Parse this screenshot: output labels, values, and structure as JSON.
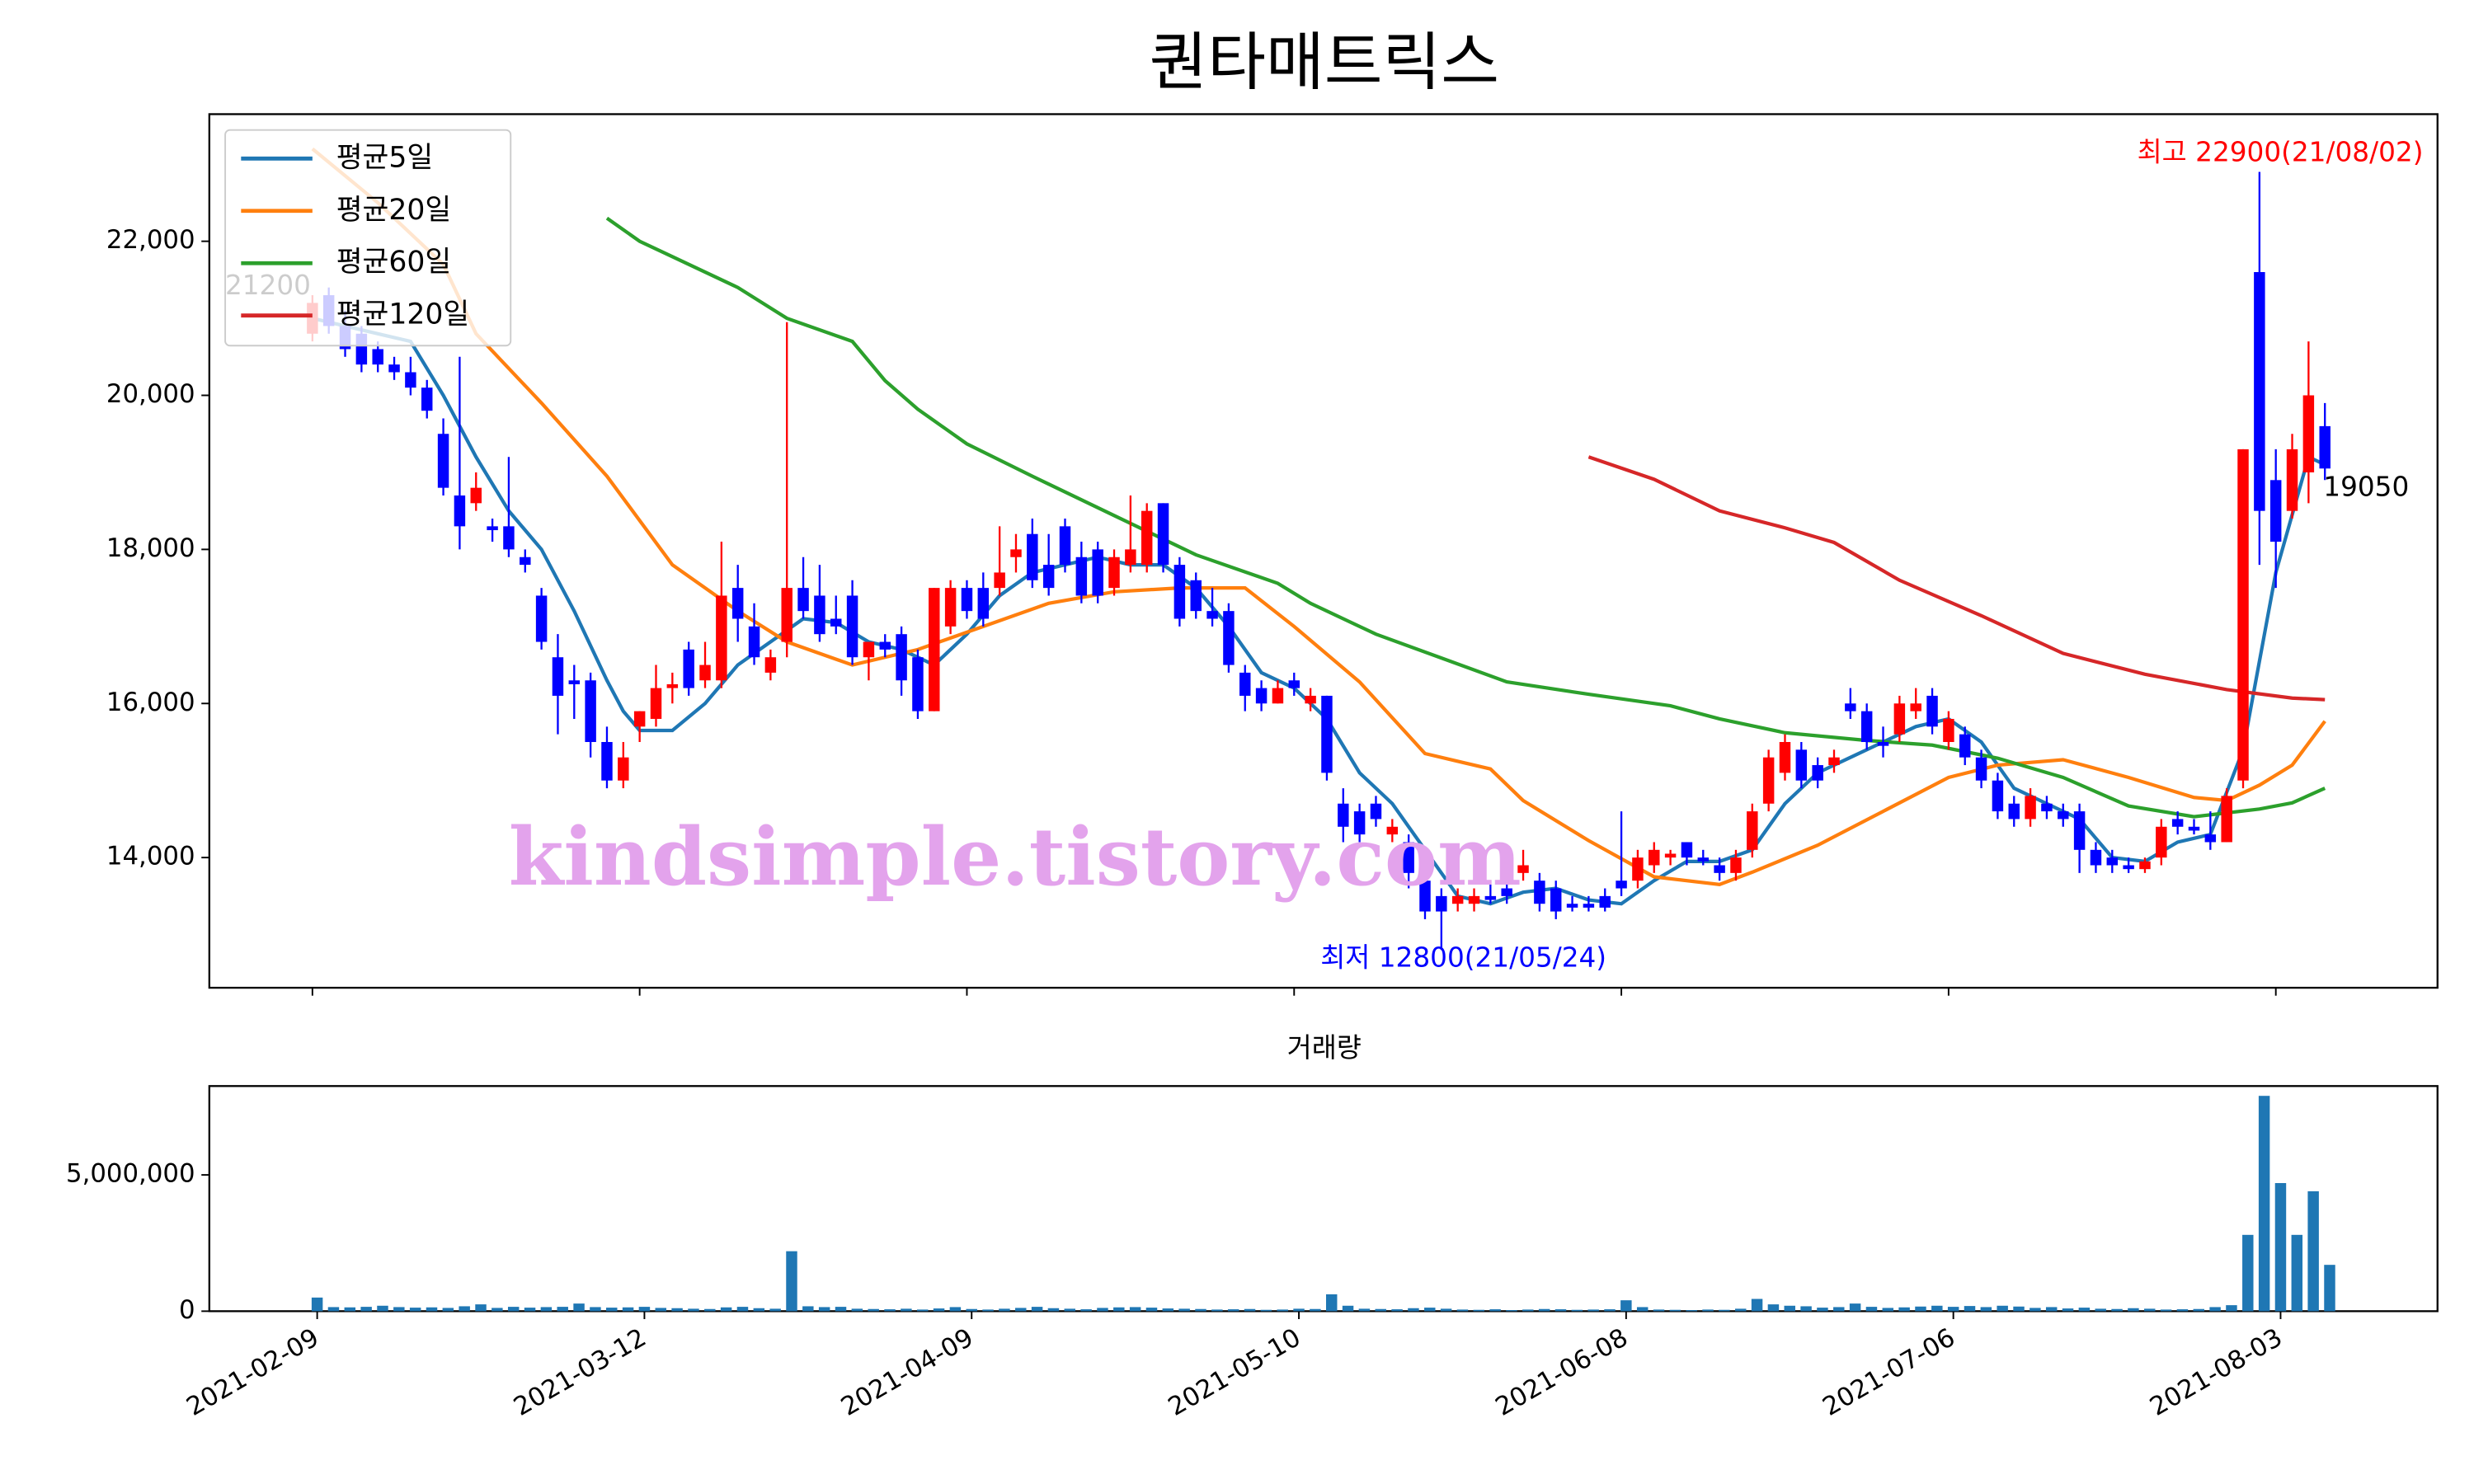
{
  "chart_data": {
    "type": "candlestick",
    "title": "퀀타매트릭스",
    "watermark": "kindsimple.tistory.com",
    "categories": [
      "2021-02-09",
      null,
      null,
      null,
      null,
      null,
      null,
      null,
      null,
      null,
      null,
      null,
      null,
      null,
      null,
      null,
      null,
      null,
      null,
      null,
      "2021-03-12",
      null,
      null,
      null,
      null,
      null,
      null,
      null,
      null,
      null,
      null,
      null,
      null,
      null,
      null,
      null,
      null,
      null,
      null,
      null,
      "2021-04-09",
      null,
      null,
      null,
      null,
      null,
      null,
      null,
      null,
      null,
      null,
      null,
      null,
      null,
      null,
      null,
      null,
      null,
      null,
      null,
      "2021-05-10",
      null,
      null,
      null,
      null,
      null,
      null,
      null,
      null,
      null,
      null,
      null,
      null,
      null,
      null,
      null,
      null,
      null,
      null,
      null,
      "2021-06-08",
      null,
      null,
      null,
      null,
      null,
      null,
      null,
      null,
      null,
      null,
      null,
      null,
      null,
      null,
      null,
      null,
      null,
      null,
      null,
      "2021-07-06",
      null,
      null,
      null,
      null,
      null,
      null,
      null,
      null,
      null,
      null,
      null,
      null,
      null,
      null,
      null,
      null,
      null,
      null,
      null,
      "2021-08-03",
      null,
      null,
      null
    ],
    "open": [
      20800,
      21300,
      20900,
      20800,
      20600,
      20400,
      20300,
      20100,
      19500,
      18700,
      18600,
      18300,
      18300,
      17900,
      17400,
      16600,
      16300,
      16300,
      15500,
      15000,
      15700,
      15800,
      16200,
      16700,
      16300,
      16300,
      17500,
      17000,
      16400,
      16800,
      17500,
      17400,
      17100,
      17400,
      16600,
      16800,
      16900,
      16600,
      15900,
      17000,
      17500,
      17500,
      17500,
      17900,
      18200,
      17800,
      18300,
      17900,
      18000,
      17500,
      17800,
      17800,
      18600,
      17800,
      17600,
      17200,
      17200,
      16400,
      16200,
      16000,
      16300,
      16000,
      16100,
      14700,
      14600,
      14700,
      14300,
      14200,
      13700,
      13500,
      13400,
      13400,
      13500,
      13600,
      13800,
      13700,
      13600,
      13400,
      13400,
      13500,
      13700,
      13700,
      13900,
      14000,
      14200,
      14000,
      13900,
      13800,
      14100,
      14700,
      15100,
      15400,
      15200,
      15200,
      16000,
      15900,
      15500,
      15600,
      15900,
      16100,
      15500,
      15600,
      15300,
      15000,
      14700,
      14500,
      14700,
      14600,
      14600,
      14100,
      14000,
      13900,
      13850,
      14000,
      14500,
      14400,
      14300,
      14200,
      15000,
      21600,
      18900,
      18500,
      19000,
      19600
    ],
    "high": [
      21300,
      21400,
      21100,
      20900,
      20700,
      20500,
      20500,
      20200,
      19700,
      20500,
      19000,
      18400,
      19200,
      18000,
      17500,
      16900,
      16500,
      16400,
      15700,
      15500,
      15900,
      16500,
      16400,
      16800,
      16800,
      18100,
      17800,
      17300,
      16700,
      20950,
      17900,
      17800,
      17400,
      17600,
      16800,
      16900,
      17000,
      16700,
      17500,
      17600,
      17600,
      17700,
      18300,
      18200,
      18400,
      18200,
      18400,
      18100,
      18100,
      18000,
      18700,
      18600,
      18600,
      17900,
      17700,
      17500,
      17300,
      16500,
      16300,
      16300,
      16400,
      16200,
      16100,
      14900,
      14700,
      14800,
      14500,
      14300,
      13800,
      13600,
      13600,
      13600,
      13700,
      13700,
      14100,
      13800,
      13700,
      13500,
      13500,
      13600,
      14600,
      14100,
      14200,
      14100,
      14200,
      14100,
      14000,
      14100,
      14700,
      15400,
      15600,
      15500,
      15300,
      15400,
      16200,
      16000,
      15700,
      16100,
      16200,
      16200,
      15900,
      15700,
      15400,
      15100,
      14800,
      14900,
      14800,
      14700,
      14700,
      14200,
      14100,
      14000,
      14000,
      14500,
      14600,
      14500,
      14600,
      14900,
      19300,
      22900,
      19300,
      19500,
      20700,
      19900
    ],
    "low": [
      20700,
      20800,
      20500,
      20300,
      20300,
      20200,
      20000,
      19700,
      18700,
      18000,
      18500,
      18100,
      17900,
      17700,
      16700,
      15600,
      15800,
      15300,
      14900,
      14900,
      15500,
      15700,
      16000,
      16100,
      16200,
      16200,
      16800,
      16500,
      16300,
      16600,
      17100,
      16800,
      16900,
      16500,
      16300,
      16600,
      16100,
      15800,
      15900,
      16900,
      17100,
      17000,
      17400,
      17700,
      17500,
      17400,
      17700,
      17300,
      17300,
      17400,
      17700,
      17700,
      17700,
      17000,
      17100,
      17000,
      16400,
      15900,
      15900,
      16000,
      16100,
      15900,
      15000,
      14200,
      14200,
      14400,
      14200,
      13600,
      13200,
      12800,
      13300,
      13300,
      13400,
      13400,
      13700,
      13300,
      13200,
      13300,
      13300,
      13300,
      13500,
      13600,
      13800,
      13900,
      13900,
      13900,
      13700,
      13700,
      14000,
      14600,
      15000,
      14900,
      14900,
      15100,
      15800,
      15400,
      15300,
      15500,
      15800,
      15600,
      15400,
      15200,
      14900,
      14500,
      14400,
      14400,
      14500,
      14400,
      13800,
      13800,
      13800,
      13800,
      13800,
      13900,
      14300,
      14300,
      14100,
      14200,
      14900,
      17800,
      17500,
      18400,
      18600,
      18900
    ],
    "close": [
      21200,
      20900,
      20600,
      20400,
      20400,
      20300,
      20100,
      19800,
      18800,
      18300,
      18800,
      18250,
      18000,
      17800,
      16800,
      16100,
      16250,
      15500,
      15000,
      15300,
      15900,
      16200,
      16250,
      16200,
      16500,
      17400,
      17100,
      16600,
      16600,
      17500,
      17200,
      16900,
      17000,
      16600,
      16800,
      16700,
      16300,
      15900,
      17500,
      17500,
      17200,
      17100,
      17700,
      18000,
      17600,
      17500,
      17800,
      17400,
      17400,
      17900,
      18000,
      18500,
      17800,
      17100,
      17200,
      17100,
      16500,
      16100,
      16000,
      16200,
      16200,
      16100,
      15100,
      14400,
      14300,
      14500,
      14400,
      13800,
      13300,
      13300,
      13500,
      13500,
      13450,
      13500,
      13900,
      13400,
      13300,
      13350,
      13350,
      13350,
      13600,
      14000,
      14100,
      14050,
      14000,
      13950,
      13800,
      14000,
      14600,
      15300,
      15500,
      15000,
      15000,
      15300,
      15900,
      15500,
      15450,
      16000,
      16000,
      15700,
      15800,
      15300,
      15000,
      14600,
      14500,
      14800,
      14600,
      14500,
      14100,
      13900,
      13900,
      13850,
      13950,
      14400,
      14400,
      14350,
      14200,
      14800,
      19300,
      18500,
      18100,
      19300,
      20000,
      19050
    ],
    "up_color": "#ff0000",
    "down_color": "#0000ff",
    "series": [
      {
        "name": "평균5일",
        "color": "#1f77b4",
        "x": [
          0,
          4,
          6,
          8,
          10,
          12,
          14,
          16,
          18,
          19,
          20,
          22,
          24,
          26,
          28,
          30,
          32,
          34,
          36,
          38,
          40,
          42,
          44,
          46,
          48,
          50,
          52,
          54,
          56,
          58,
          60,
          62,
          64,
          66,
          68,
          70,
          72,
          74,
          76,
          78,
          80,
          82,
          84,
          86,
          88,
          90,
          92,
          94,
          96,
          98,
          100,
          102,
          104,
          106,
          108,
          110,
          112,
          114,
          116,
          118,
          120,
          122,
          123
        ],
        "values": [
          21000,
          20800,
          20700,
          20000,
          19200,
          18500,
          18000,
          17200,
          16300,
          15900,
          15650,
          15650,
          16000,
          16500,
          16800,
          17100,
          17050,
          16800,
          16700,
          16500,
          16900,
          17400,
          17700,
          17800,
          17900,
          17800,
          17800,
          17500,
          17000,
          16400,
          16200,
          15800,
          15100,
          14700,
          14100,
          13500,
          13400,
          13550,
          13600,
          13450,
          13400,
          13700,
          13950,
          13950,
          14100,
          14700,
          15100,
          15300,
          15500,
          15700,
          15800,
          15500,
          14900,
          14700,
          14500,
          14000,
          13950,
          14200,
          14300,
          15400,
          17700,
          19200,
          19100
        ]
      },
      {
        "name": "평균20일",
        "color": "#ff7f0e",
        "x": [
          0,
          4,
          8,
          10,
          14,
          18,
          22,
          26,
          29,
          33,
          37,
          41,
          45,
          49,
          53,
          57,
          60,
          64,
          68,
          72,
          74,
          78,
          82,
          86,
          88,
          92,
          96,
          100,
          103,
          107,
          111,
          115,
          117,
          119,
          121,
          123
        ],
        "values": [
          23200,
          22500,
          21700,
          20800,
          19900,
          18950,
          17800,
          17200,
          16800,
          16500,
          16700,
          17000,
          17300,
          17450,
          17500,
          17500,
          17000,
          16280,
          15350,
          15150,
          14740,
          14220,
          13750,
          13650,
          13810,
          14160,
          14600,
          15040,
          15200,
          15270,
          15040,
          14780,
          14740,
          14940,
          15200,
          15770
        ]
      },
      {
        "name": "평균60일",
        "color": "#2ca02c",
        "x": [
          18,
          20,
          22,
          26,
          29,
          33,
          35,
          37,
          40,
          44,
          49,
          54,
          59,
          61,
          65,
          69,
          73,
          78,
          83,
          86,
          90,
          95,
          99,
          103,
          107,
          111,
          115,
          119,
          121,
          123
        ],
        "values": [
          22300,
          22000,
          21800,
          21400,
          21000,
          20700,
          20190,
          19820,
          19370,
          18950,
          18440,
          17930,
          17560,
          17300,
          16900,
          16590,
          16280,
          16120,
          15970,
          15800,
          15620,
          15520,
          15460,
          15290,
          15040,
          14670,
          14530,
          14630,
          14710,
          14900
        ]
      },
      {
        "name": "평균120일",
        "color": "#d62728",
        "x": [
          78,
          82,
          86,
          90,
          93,
          97,
          102,
          107,
          112,
          117,
          121,
          123
        ],
        "values": [
          19200,
          18910,
          18500,
          18280,
          18090,
          17600,
          17140,
          16650,
          16380,
          16180,
          16070,
          16050
        ]
      }
    ],
    "legend": "upper left",
    "ylim": [
      12310,
      23650
    ],
    "yticks": [
      {
        "value": 14000,
        "label": "14,000"
      },
      {
        "value": 16000,
        "label": "16,000"
      },
      {
        "value": 18000,
        "label": "18,000"
      },
      {
        "value": 20000,
        "label": "20,000"
      },
      {
        "value": 22000,
        "label": "22,000"
      }
    ],
    "annotations": [
      {
        "text": "최고 22900(21/08/02)",
        "color": "#ff0000"
      },
      {
        "text": "최저 12800(21/05/24)",
        "color": "#0000ff"
      },
      {
        "text": "21200",
        "color": "#000000"
      },
      {
        "text": "19050",
        "color": "#000000"
      }
    ],
    "volume": {
      "title": "거래량",
      "color": "#1f77b4",
      "values": [
        500000,
        150000,
        140000,
        160000,
        200000,
        150000,
        130000,
        140000,
        120000,
        180000,
        250000,
        120000,
        160000,
        130000,
        150000,
        160000,
        280000,
        150000,
        130000,
        140000,
        160000,
        120000,
        110000,
        90000,
        80000,
        140000,
        160000,
        110000,
        90000,
        2200000,
        180000,
        150000,
        160000,
        90000,
        80000,
        70000,
        90000,
        60000,
        100000,
        150000,
        80000,
        60000,
        90000,
        120000,
        160000,
        110000,
        90000,
        70000,
        120000,
        140000,
        150000,
        130000,
        100000,
        90000,
        80000,
        60000,
        70000,
        80000,
        50000,
        60000,
        90000,
        80000,
        620000,
        200000,
        90000,
        80000,
        70000,
        110000,
        130000,
        90000,
        60000,
        50000,
        70000,
        40000,
        60000,
        80000,
        70000,
        50000,
        60000,
        70000,
        400000,
        150000,
        60000,
        50000,
        40000,
        60000,
        50000,
        90000,
        450000,
        250000,
        200000,
        180000,
        130000,
        150000,
        280000,
        160000,
        120000,
        140000,
        170000,
        200000,
        160000,
        190000,
        150000,
        200000,
        170000,
        120000,
        150000,
        100000,
        130000,
        90000,
        80000,
        110000,
        90000,
        60000,
        70000,
        80000,
        150000,
        220000,
        2800000,
        7900000,
        4700000,
        2800000,
        4400000,
        1700000
      ],
      "ylim": [
        0,
        8260000
      ],
      "yticks": [
        0,
        {
          "value": 5000000,
          "label": "5,000,000"
        }
      ]
    }
  }
}
